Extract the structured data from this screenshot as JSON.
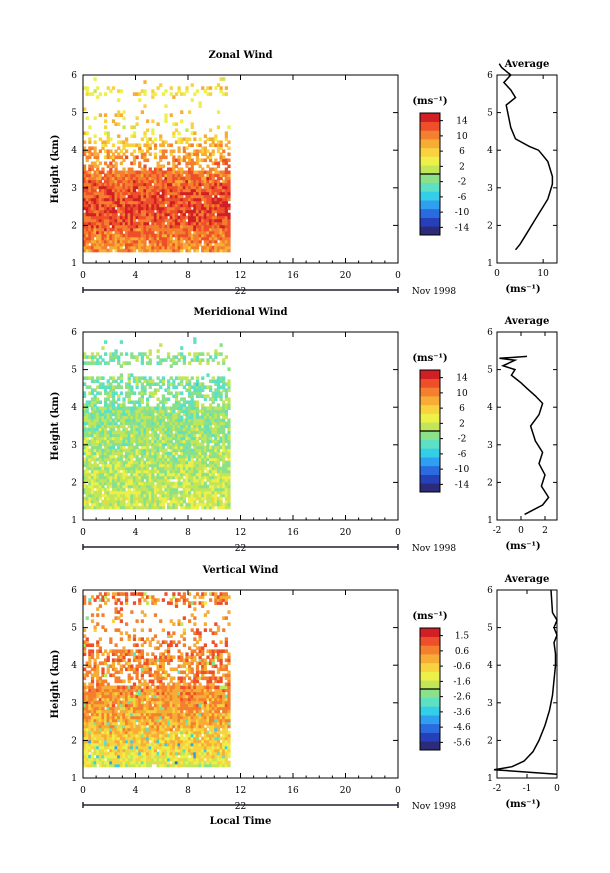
{
  "chart_data": [
    {
      "type": "heatmap",
      "title": "Zonal Wind",
      "xlabel": "",
      "ylabel": "Height (km)",
      "xlim": [
        0,
        24
      ],
      "ylim": [
        1,
        6
      ],
      "xticks": [
        "0",
        "4",
        "8",
        "12",
        "16",
        "20",
        "0"
      ],
      "yticks": [
        "1",
        "2",
        "3",
        "4",
        "5",
        "6"
      ],
      "day_label": "22",
      "date_label": "Nov 1998",
      "data_extent_hours": [
        0,
        11
      ],
      "colorbar": {
        "unit": "(ms⁻¹)",
        "ticks": [
          "14",
          "10",
          "6",
          "2",
          "-2",
          "-6",
          "-10",
          "-14"
        ],
        "range": [
          -16,
          16
        ]
      },
      "profile_at_height": [
        {
          "h": 1.0,
          "v": 8
        },
        {
          "h": 1.5,
          "v": 10
        },
        {
          "h": 2.0,
          "v": 12
        },
        {
          "h": 2.5,
          "v": 13
        },
        {
          "h": 3.0,
          "v": 12
        },
        {
          "h": 3.5,
          "v": 10
        },
        {
          "h": 4.0,
          "v": 8
        },
        {
          "h": 4.5,
          "v": 4
        },
        {
          "h": 5.0,
          "v": 6
        },
        {
          "h": 5.5,
          "v": 5
        }
      ],
      "average": {
        "title": "Average",
        "unit_label": "(ms⁻¹)",
        "xlim": [
          0,
          13
        ],
        "ylim": [
          1,
          6
        ],
        "xticks": [
          "0",
          "10"
        ],
        "yticks": [
          "1",
          "2",
          "3",
          "4",
          "5",
          "6"
        ],
        "x": [
          4,
          5,
          6,
          7,
          8,
          9,
          10,
          11,
          11.5,
          12,
          12,
          11.5,
          11,
          10,
          9,
          7,
          4,
          3,
          2,
          4,
          3,
          1.5,
          3,
          1,
          0.5
        ],
        "y": [
          1.35,
          1.5,
          1.7,
          1.9,
          2.1,
          2.3,
          2.5,
          2.7,
          2.9,
          3.1,
          3.3,
          3.5,
          3.7,
          3.85,
          4.0,
          4.1,
          4.3,
          4.6,
          5.2,
          5.4,
          5.6,
          5.8,
          6.0,
          6.2,
          6.3
        ]
      }
    },
    {
      "type": "heatmap",
      "title": "Meridional Wind",
      "xlabel": "",
      "ylabel": "Height (km)",
      "xlim": [
        0,
        24
      ],
      "ylim": [
        1,
        6
      ],
      "xticks": [
        "0",
        "4",
        "8",
        "12",
        "16",
        "20",
        "0"
      ],
      "yticks": [
        "1",
        "2",
        "3",
        "4",
        "5",
        "6"
      ],
      "day_label": "22",
      "date_label": "Nov 1998",
      "data_extent_hours": [
        0,
        11
      ],
      "colorbar": {
        "unit": "(ms⁻¹)",
        "ticks": [
          "14",
          "10",
          "6",
          "2",
          "-2",
          "-6",
          "-10",
          "-14"
        ],
        "range": [
          -16,
          16
        ]
      },
      "profile_at_height": [
        {
          "h": 1.0,
          "v": 1
        },
        {
          "h": 1.5,
          "v": 2
        },
        {
          "h": 2.0,
          "v": 1
        },
        {
          "h": 2.5,
          "v": 0.5
        },
        {
          "h": 3.0,
          "v": 0
        },
        {
          "h": 3.5,
          "v": -0.5
        },
        {
          "h": 4.0,
          "v": -1
        },
        {
          "h": 4.5,
          "v": -2
        },
        {
          "h": 5.0,
          "v": -1
        },
        {
          "h": 5.5,
          "v": -1
        }
      ],
      "average": {
        "title": "Average",
        "unit_label": "(ms⁻¹)",
        "xlim": [
          -2,
          3
        ],
        "ylim": [
          1,
          6
        ],
        "xticks": [
          "-2",
          "0",
          "2"
        ],
        "yticks": [
          "1",
          "2",
          "3",
          "4",
          "5",
          "6"
        ],
        "x": [
          0.3,
          1.8,
          2.3,
          1.7,
          2.0,
          1.5,
          1.8,
          1.2,
          0.8,
          1.5,
          1.8,
          1.2,
          0.5,
          0,
          -0.4,
          -0.8,
          -0.5,
          -1.5,
          -0.5,
          -1.8,
          0.5
        ],
        "y": [
          1.15,
          1.4,
          1.6,
          1.9,
          2.2,
          2.5,
          2.8,
          3.1,
          3.5,
          3.8,
          4.1,
          4.3,
          4.5,
          4.65,
          4.75,
          4.85,
          5.0,
          5.1,
          5.25,
          5.3,
          5.35
        ]
      }
    },
    {
      "type": "heatmap",
      "title": "Vertical Wind",
      "xlabel": "Local Time",
      "ylabel": "Height (km)",
      "xlim": [
        0,
        24
      ],
      "ylim": [
        1,
        6
      ],
      "xticks": [
        "0",
        "4",
        "8",
        "12",
        "16",
        "20",
        "0"
      ],
      "yticks": [
        "1",
        "2",
        "3",
        "4",
        "5",
        "6"
      ],
      "day_label": "22",
      "date_label": "Nov 1998",
      "data_extent_hours": [
        0,
        11
      ],
      "colorbar": {
        "unit": "(ms⁻¹)",
        "ticks": [
          "1.5",
          "0.6",
          "-0.6",
          "-1.6",
          "-2.6",
          "-3.6",
          "-4.6",
          "-5.6"
        ],
        "range": [
          -6.1,
          2.0
        ]
      },
      "profile_at_height": [
        {
          "h": 1.0,
          "v": -2.0
        },
        {
          "h": 1.5,
          "v": -1.0
        },
        {
          "h": 2.0,
          "v": -0.6
        },
        {
          "h": 2.5,
          "v": 0.0
        },
        {
          "h": 3.0,
          "v": 0.2
        },
        {
          "h": 3.5,
          "v": 0.5
        },
        {
          "h": 4.0,
          "v": 0.4
        },
        {
          "h": 4.5,
          "v": 0.6
        },
        {
          "h": 5.0,
          "v": 0.3
        },
        {
          "h": 5.5,
          "v": 0.5
        }
      ],
      "average": {
        "title": "Average",
        "unit_label": "(ms⁻¹)",
        "xlim": [
          -2,
          0
        ],
        "ylim": [
          1,
          6
        ],
        "xticks": [
          "-2",
          "-1",
          "0"
        ],
        "yticks": [
          "1",
          "2",
          "3",
          "4",
          "5",
          "6"
        ],
        "x": [
          0,
          -2.1,
          -1.5,
          -1.1,
          -0.8,
          -0.6,
          -0.4,
          -0.25,
          -0.15,
          -0.1,
          -0.05,
          -0.05,
          -0.1,
          0,
          -0.1,
          0,
          -0.15,
          -0.2
        ],
        "y": [
          1.1,
          1.22,
          1.3,
          1.45,
          1.7,
          2.0,
          2.4,
          2.8,
          3.2,
          3.6,
          4.0,
          4.3,
          4.6,
          4.8,
          5.0,
          5.2,
          5.4,
          6.0
        ]
      }
    }
  ]
}
